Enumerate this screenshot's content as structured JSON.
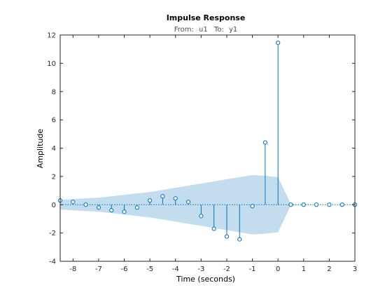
{
  "chart_data": {
    "type": "stem",
    "title": "Impulse Response",
    "subtitle_from_label": "From:",
    "subtitle_from_value": "u1",
    "subtitle_to_label": "To:",
    "subtitle_to_value": "y1",
    "xlabel": "Time (seconds)",
    "ylabel": "Amplitude",
    "xlim": [
      -8.5,
      3
    ],
    "ylim": [
      -4,
      12
    ],
    "xticks": [
      -8,
      -7,
      -6,
      -5,
      -4,
      -3,
      -2,
      -1,
      0,
      1,
      2,
      3
    ],
    "yticks": [
      -4,
      -2,
      0,
      2,
      4,
      6,
      8,
      10,
      12
    ],
    "grid": false,
    "series": [
      {
        "x": [
          -8.5,
          -8,
          -7.5,
          -7,
          -6.5,
          -6,
          -5.5,
          -5,
          -4.5,
          -4,
          -3.5,
          -3,
          -2.5,
          -2,
          -1.5,
          -1,
          -0.5,
          0,
          0.5,
          1,
          1.5,
          2,
          2.5,
          3
        ],
        "values": [
          0.3,
          0.2,
          0.0,
          -0.2,
          -0.4,
          -0.5,
          -0.2,
          0.3,
          0.6,
          0.45,
          0.2,
          -0.8,
          -1.7,
          -2.25,
          -2.45,
          -0.1,
          4.4,
          11.45,
          0.0,
          0.0,
          0.0,
          0.0,
          0.0,
          0.0
        ]
      }
    ],
    "confidence_band": {
      "x": [
        -8.5,
        -7,
        -6,
        -5,
        -4,
        -3,
        -2,
        -1.5,
        -1,
        -0.5,
        0,
        0.5,
        1,
        3
      ],
      "upper": [
        0.35,
        0.5,
        0.7,
        0.9,
        1.2,
        1.5,
        1.8,
        1.95,
        2.1,
        2.05,
        1.95,
        0.05,
        0.0,
        0.0
      ],
      "lower": [
        -0.35,
        -0.5,
        -0.7,
        -0.9,
        -1.2,
        -1.5,
        -1.8,
        -1.95,
        -2.1,
        -2.05,
        -1.95,
        -0.05,
        0.0,
        0.0
      ]
    },
    "colors": {
      "stem": "#0072bd",
      "band": "#c3ddef",
      "zero_line": "#0072bd",
      "axes": "#262626"
    }
  }
}
